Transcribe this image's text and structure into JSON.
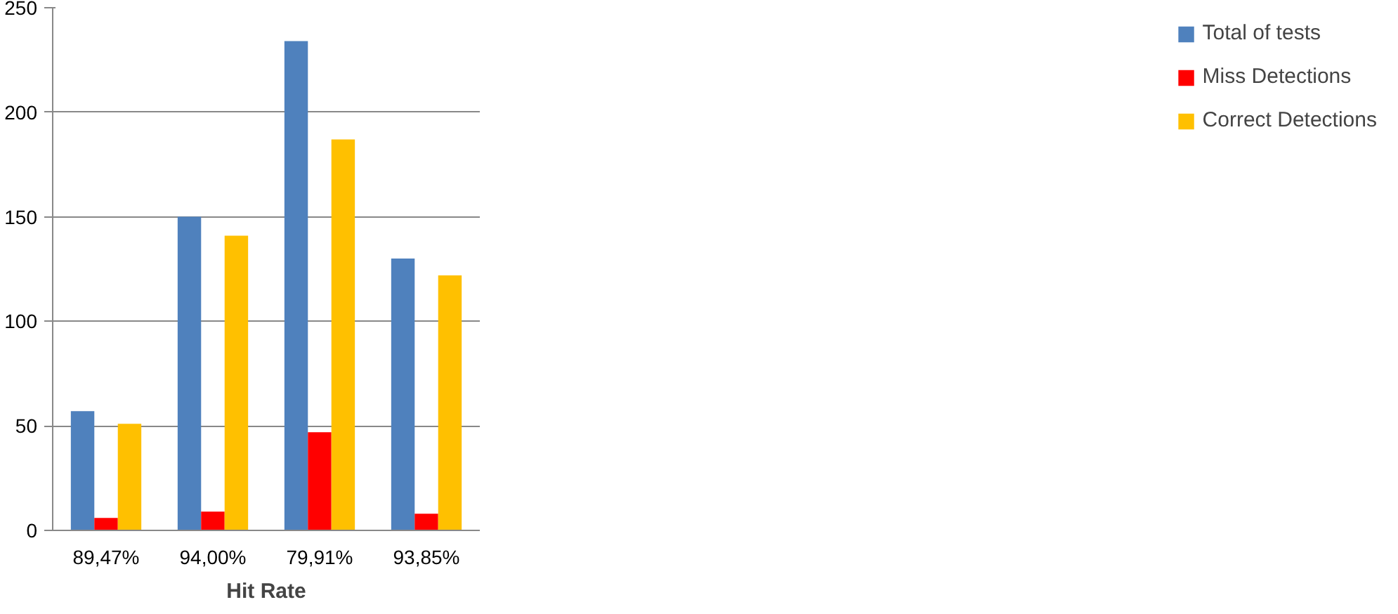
{
  "chart_data": {
    "type": "bar",
    "xlabel": "Hit Rate",
    "categories": [
      "89,47%",
      "94,00%",
      "79,91%",
      "93,85%"
    ],
    "series": [
      {
        "name": "Total of tests",
        "color": "#4f81bd",
        "values": [
          57,
          150,
          234,
          130
        ]
      },
      {
        "name": "Miss Detections",
        "color": "#ff0000",
        "values": [
          6,
          9,
          47,
          8
        ]
      },
      {
        "name": "Correct Detections",
        "color": "#ffc000",
        "values": [
          51,
          141,
          187,
          122
        ]
      }
    ],
    "ylim": [
      0,
      250
    ],
    "yticks": [
      0,
      50,
      100,
      150,
      200,
      250
    ],
    "grid": "y",
    "legend": "right"
  }
}
